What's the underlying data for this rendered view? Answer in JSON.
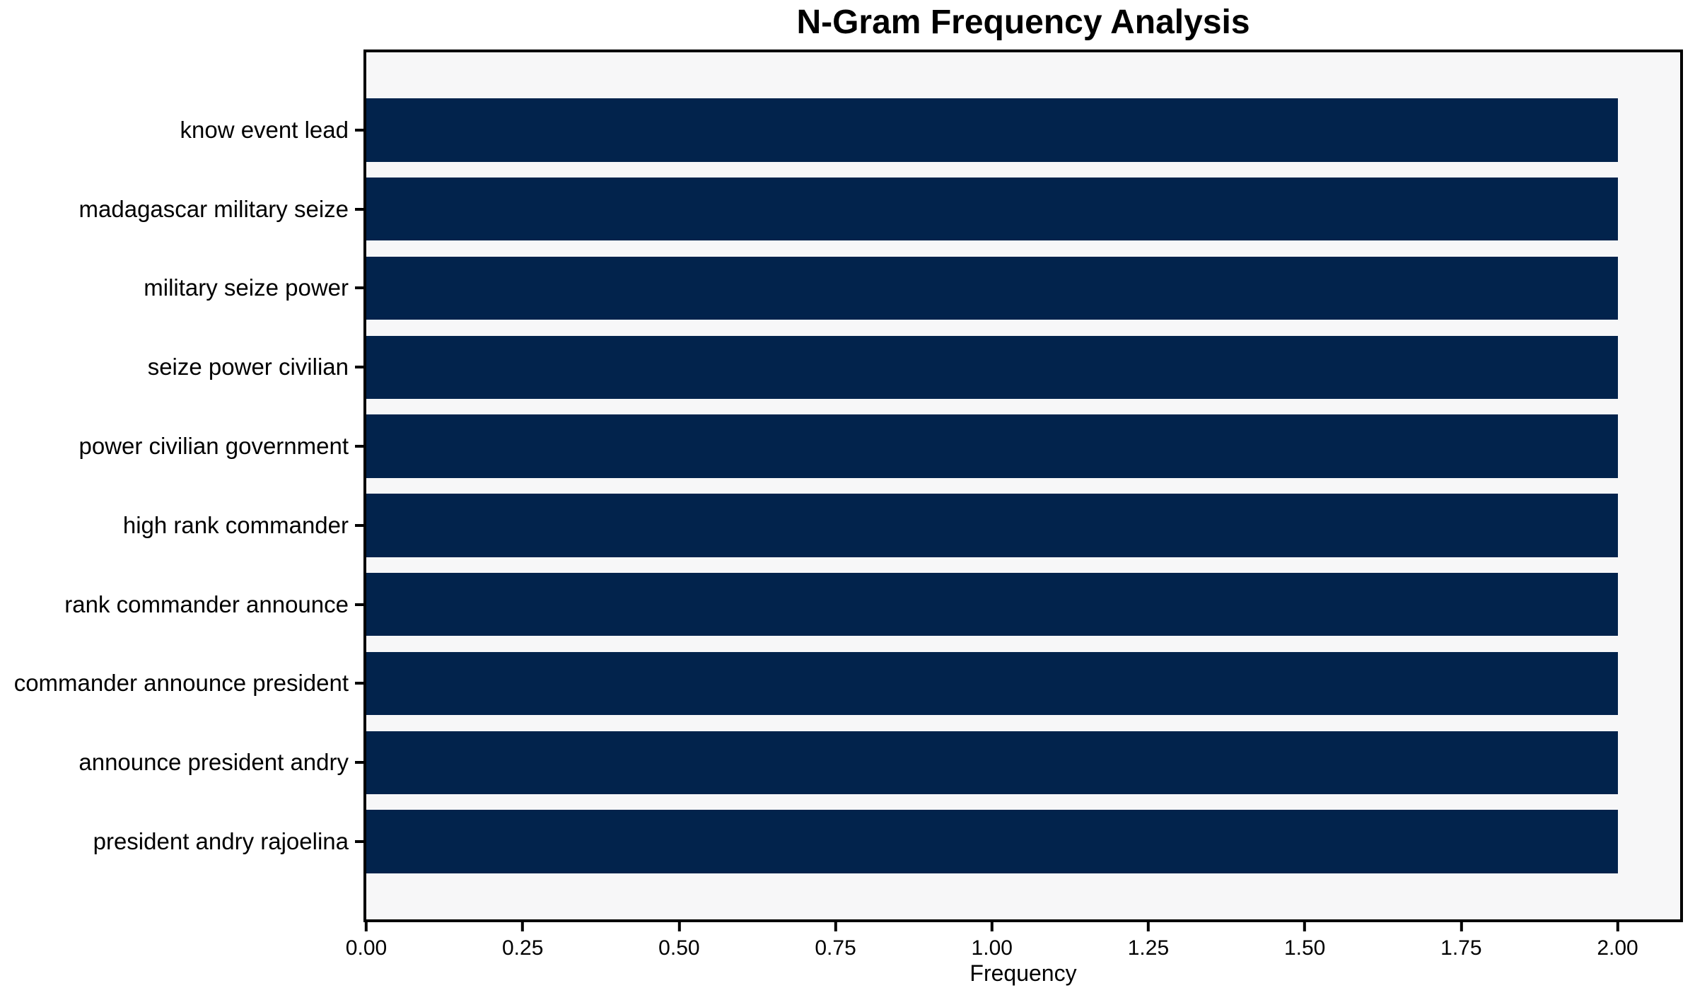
{
  "chart_data": {
    "type": "bar",
    "orientation": "horizontal",
    "title": "N-Gram Frequency Analysis",
    "xlabel": "Frequency",
    "ylabel": "",
    "categories": [
      "know event lead",
      "madagascar military seize",
      "military seize power",
      "seize power civilian",
      "power civilian government",
      "high rank commander",
      "rank commander announce",
      "commander announce president",
      "announce president andry",
      "president andry rajoelina"
    ],
    "values": [
      2,
      2,
      2,
      2,
      2,
      2,
      2,
      2,
      2,
      2
    ],
    "xlim": [
      0,
      2.1
    ],
    "x_ticks": [
      0.0,
      0.25,
      0.5,
      0.75,
      1.0,
      1.25,
      1.5,
      1.75,
      2.0
    ],
    "x_tick_labels": [
      "0.00",
      "0.25",
      "0.50",
      "0.75",
      "1.00",
      "1.25",
      "1.50",
      "1.75",
      "2.00"
    ],
    "grid": false,
    "legend": false,
    "colors": {
      "bar": "#02234c",
      "plot_background": "#f7f7f8",
      "figure_background": "#ffffff",
      "spine": "#000000",
      "text": "#000000"
    }
  }
}
